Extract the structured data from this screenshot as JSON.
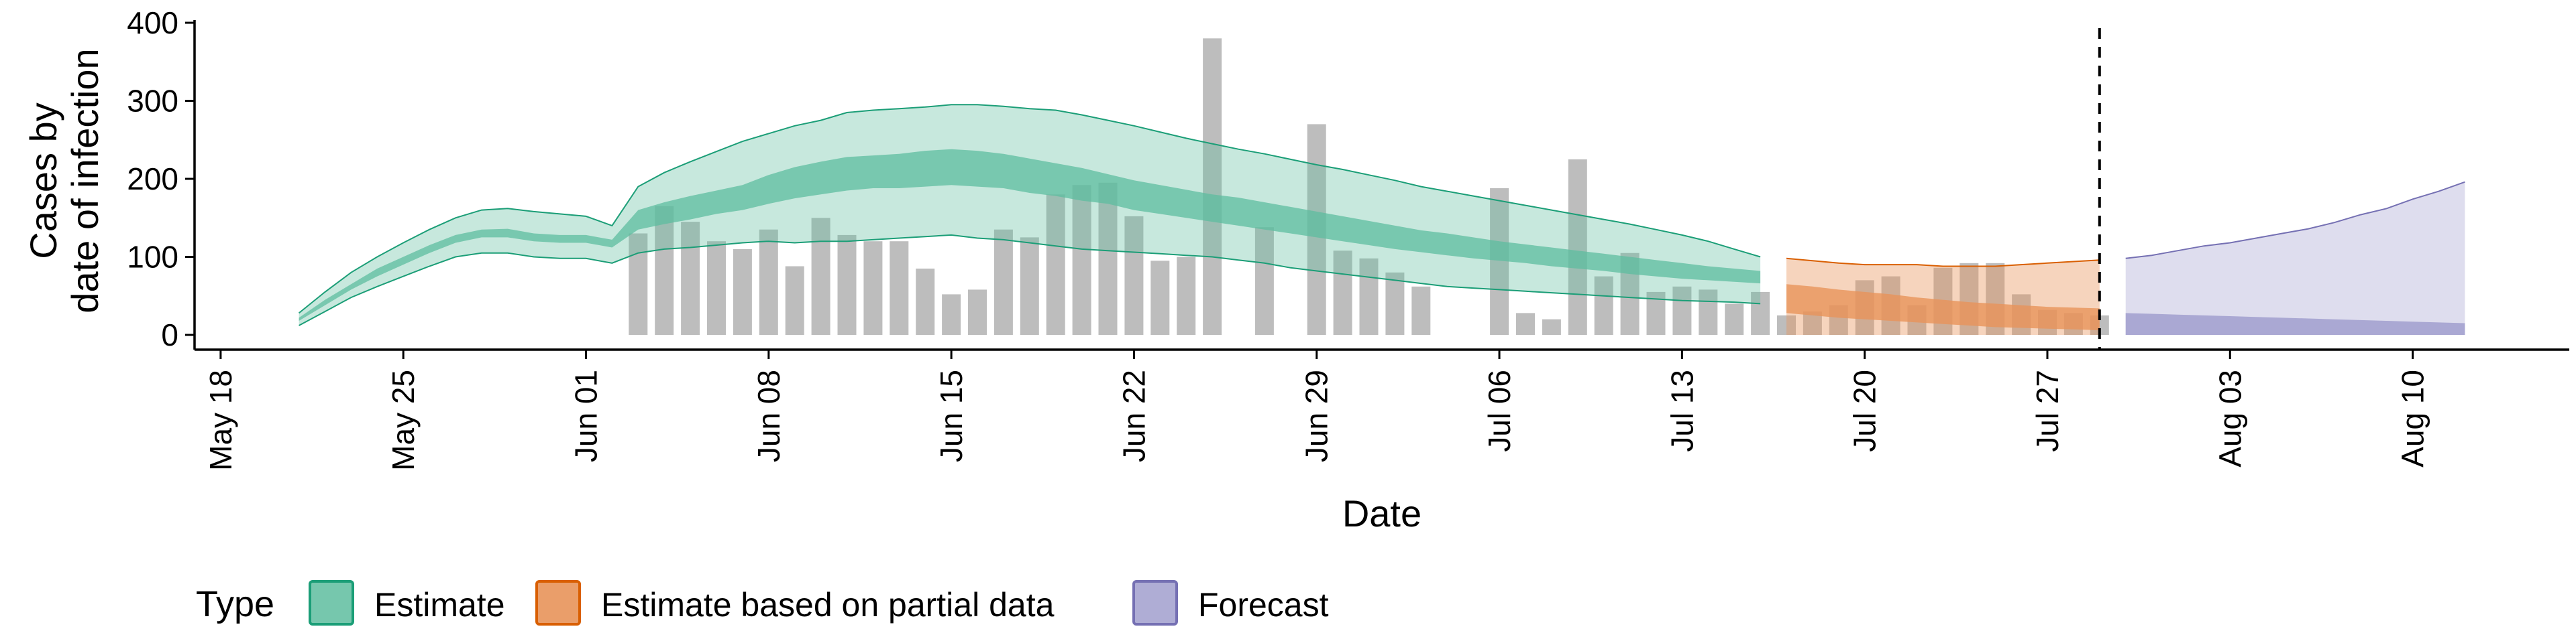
{
  "chart_data": {
    "type": "area",
    "title": "",
    "xlabel": "Date",
    "ylabel": [
      "Cases by",
      "date of infection"
    ],
    "ylim": [
      0,
      400
    ],
    "y_ticks": [
      0,
      100,
      200,
      300,
      400
    ],
    "x_ticks": [
      "May 18",
      "May 25",
      "Jun 01",
      "Jun 08",
      "Jun 15",
      "Jun 22",
      "Jun 29",
      "Jul 06",
      "Jul 13",
      "Jul 20",
      "Jul 27",
      "Aug 03",
      "Aug 10"
    ],
    "x_tick_dates": [
      "2020-05-18",
      "2020-05-25",
      "2020-06-01",
      "2020-06-08",
      "2020-06-15",
      "2020-06-22",
      "2020-06-29",
      "2020-07-06",
      "2020-07-13",
      "2020-07-20",
      "2020-07-27",
      "2020-08-03",
      "2020-08-10"
    ],
    "xlim": [
      "2020-05-17",
      "2020-08-16"
    ],
    "grid": false,
    "legend_position": "bottom",
    "legend": {
      "title": "Type",
      "entries": [
        {
          "label": "Estimate",
          "fill": "#5EBD9F",
          "stroke": "#1B9E77"
        },
        {
          "label": "Estimate based on partial data",
          "fill": "#E8945A",
          "stroke": "#D95F02"
        },
        {
          "label": "Forecast",
          "fill": "#A19FCE",
          "stroke": "#7570B3"
        }
      ]
    },
    "vline": {
      "date": "2020-07-29",
      "style": "dashed"
    },
    "bars": {
      "color": "#BDBDBD",
      "dates": [
        "2020-06-03",
        "2020-06-04",
        "2020-06-05",
        "2020-06-06",
        "2020-06-07",
        "2020-06-08",
        "2020-06-09",
        "2020-06-10",
        "2020-06-11",
        "2020-06-12",
        "2020-06-13",
        "2020-06-14",
        "2020-06-15",
        "2020-06-16",
        "2020-06-17",
        "2020-06-18",
        "2020-06-19",
        "2020-06-20",
        "2020-06-21",
        "2020-06-22",
        "2020-06-23",
        "2020-06-24",
        "2020-06-25",
        "2020-06-26",
        "2020-06-27",
        "2020-06-28",
        "2020-06-29",
        "2020-06-30",
        "2020-07-01",
        "2020-07-02",
        "2020-07-03",
        "2020-07-04",
        "2020-07-05",
        "2020-07-06",
        "2020-07-07",
        "2020-07-08",
        "2020-07-09",
        "2020-07-10",
        "2020-07-11",
        "2020-07-12",
        "2020-07-13",
        "2020-07-14",
        "2020-07-15",
        "2020-07-16",
        "2020-07-17",
        "2020-07-18",
        "2020-07-19",
        "2020-07-20",
        "2020-07-21",
        "2020-07-22",
        "2020-07-23",
        "2020-07-24",
        "2020-07-25",
        "2020-07-26",
        "2020-07-27",
        "2020-07-28",
        "2020-07-29"
      ],
      "values": [
        130,
        165,
        145,
        120,
        110,
        135,
        88,
        150,
        128,
        120,
        120,
        85,
        52,
        58,
        135,
        125,
        180,
        192,
        195,
        152,
        95,
        100,
        380,
        0,
        138,
        0,
        270,
        108,
        98,
        80,
        62,
        0,
        0,
        188,
        28,
        20,
        225,
        75,
        105,
        55,
        62,
        58,
        40,
        55,
        25,
        30,
        38,
        70,
        75,
        38,
        86,
        92,
        92,
        52,
        32,
        28,
        25
      ]
    },
    "estimate": {
      "dates": [
        "2020-05-21",
        "2020-05-22",
        "2020-05-23",
        "2020-05-24",
        "2020-05-25",
        "2020-05-26",
        "2020-05-27",
        "2020-05-28",
        "2020-05-29",
        "2020-05-30",
        "2020-05-31",
        "2020-06-01",
        "2020-06-02",
        "2020-06-03",
        "2020-06-04",
        "2020-06-05",
        "2020-06-06",
        "2020-06-07",
        "2020-06-08",
        "2020-06-09",
        "2020-06-10",
        "2020-06-11",
        "2020-06-12",
        "2020-06-13",
        "2020-06-14",
        "2020-06-15",
        "2020-06-16",
        "2020-06-17",
        "2020-06-18",
        "2020-06-19",
        "2020-06-20",
        "2020-06-21",
        "2020-06-22",
        "2020-06-23",
        "2020-06-24",
        "2020-06-25",
        "2020-06-26",
        "2020-06-27",
        "2020-06-28",
        "2020-06-29",
        "2020-06-30",
        "2020-07-01",
        "2020-07-02",
        "2020-07-03",
        "2020-07-04",
        "2020-07-05",
        "2020-07-06",
        "2020-07-07",
        "2020-07-08",
        "2020-07-09",
        "2020-07-10",
        "2020-07-11",
        "2020-07-12",
        "2020-07-13",
        "2020-07-14",
        "2020-07-15",
        "2020-07-16"
      ],
      "lower90": [
        12,
        30,
        48,
        62,
        75,
        88,
        100,
        105,
        105,
        100,
        98,
        98,
        92,
        105,
        110,
        112,
        115,
        118,
        120,
        118,
        120,
        120,
        122,
        124,
        126,
        128,
        124,
        122,
        118,
        114,
        110,
        108,
        106,
        104,
        102,
        100,
        96,
        92,
        86,
        82,
        78,
        74,
        70,
        66,
        62,
        60,
        58,
        56,
        54,
        52,
        50,
        48,
        46,
        44,
        43,
        42,
        40
      ],
      "lower50": [
        18,
        38,
        58,
        75,
        90,
        105,
        118,
        125,
        125,
        120,
        118,
        118,
        112,
        135,
        142,
        148,
        155,
        160,
        168,
        175,
        180,
        185,
        188,
        188,
        190,
        192,
        190,
        188,
        182,
        178,
        172,
        168,
        160,
        155,
        150,
        145,
        140,
        135,
        130,
        125,
        120,
        115,
        110,
        106,
        102,
        98,
        95,
        92,
        88,
        85,
        82,
        78,
        75,
        72,
        70,
        68,
        66
      ],
      "upper50": [
        22,
        45,
        65,
        85,
        100,
        115,
        128,
        135,
        136,
        130,
        128,
        128,
        122,
        160,
        170,
        178,
        185,
        192,
        205,
        215,
        222,
        228,
        230,
        232,
        236,
        238,
        236,
        232,
        226,
        220,
        214,
        206,
        198,
        192,
        186,
        180,
        176,
        170,
        164,
        158,
        152,
        146,
        140,
        134,
        130,
        125,
        120,
        116,
        112,
        108,
        104,
        100,
        96,
        92,
        88,
        85,
        82
      ],
      "upper90": [
        28,
        55,
        80,
        100,
        118,
        135,
        150,
        160,
        162,
        158,
        155,
        152,
        140,
        190,
        208,
        222,
        235,
        248,
        258,
        268,
        275,
        285,
        288,
        290,
        292,
        295,
        295,
        293,
        290,
        288,
        282,
        275,
        268,
        260,
        252,
        245,
        238,
        232,
        225,
        218,
        212,
        205,
        198,
        190,
        184,
        178,
        172,
        166,
        160,
        154,
        148,
        142,
        135,
        128,
        120,
        110,
        100
      ]
    },
    "partial": {
      "dates": [
        "2020-07-17",
        "2020-07-18",
        "2020-07-19",
        "2020-07-20",
        "2020-07-21",
        "2020-07-22",
        "2020-07-23",
        "2020-07-24",
        "2020-07-25",
        "2020-07-26",
        "2020-07-27",
        "2020-07-28",
        "2020-07-29"
      ],
      "lower90": [
        0,
        0,
        0,
        0,
        0,
        0,
        0,
        0,
        0,
        0,
        0,
        0,
        0
      ],
      "lower50": [
        28,
        25,
        22,
        20,
        18,
        16,
        14,
        12,
        10,
        9,
        8,
        7,
        6
      ],
      "upper50": [
        65,
        62,
        58,
        55,
        52,
        48,
        45,
        42,
        40,
        38,
        36,
        35,
        34
      ],
      "upper90": [
        98,
        95,
        92,
        90,
        90,
        90,
        88,
        88,
        88,
        90,
        92,
        94,
        96
      ]
    },
    "forecast": {
      "dates": [
        "2020-07-30",
        "2020-07-31",
        "2020-08-01",
        "2020-08-02",
        "2020-08-03",
        "2020-08-04",
        "2020-08-05",
        "2020-08-06",
        "2020-08-07",
        "2020-08-08",
        "2020-08-09",
        "2020-08-10",
        "2020-08-11",
        "2020-08-12"
      ],
      "lower": [
        0,
        0,
        0,
        0,
        0,
        0,
        0,
        0,
        0,
        0,
        0,
        0,
        0,
        0
      ],
      "lower50": [
        28,
        27,
        26,
        25,
        24,
        23,
        22,
        21,
        20,
        19,
        18,
        17,
        16,
        15
      ],
      "upper": [
        98,
        102,
        108,
        114,
        118,
        124,
        130,
        136,
        144,
        154,
        162,
        174,
        184,
        196
      ]
    }
  }
}
